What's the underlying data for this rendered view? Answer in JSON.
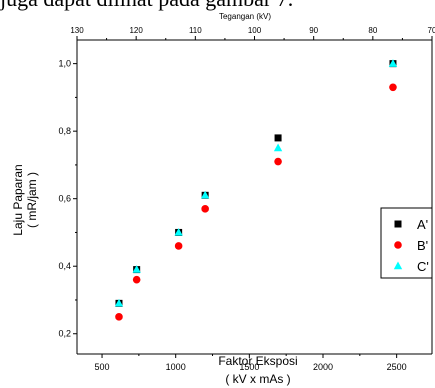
{
  "caption_text": "juga dapat dilihat pada gambar 7.",
  "chart_data": {
    "type": "scatter",
    "title": "",
    "xlabel": "Faktor Eksposi",
    "xlabel_units": "( kV x mAs )",
    "ylabel": "Laju Paparan",
    "ylabel_units": "( mR/jam )",
    "top_axis_label": "Tegangan (kV)",
    "xlim": [
      330,
      2740
    ],
    "ylim": [
      0.14,
      1.07
    ],
    "x_ticks": [
      500,
      1000,
      1500,
      2000,
      2500
    ],
    "y_ticks": [
      0.2,
      0.4,
      0.6,
      0.8,
      1.0
    ],
    "y_tick_labels": [
      "0,2",
      "0,4",
      "0,6",
      "0,8",
      "1,0"
    ],
    "top_ticks": [
      130,
      120,
      110,
      100,
      90,
      80,
      70
    ],
    "top_range": [
      130,
      70
    ],
    "legend_position": "right",
    "series": [
      {
        "name": "A'",
        "marker": "square",
        "color": "#000000",
        "x": [
          615,
          735,
          1020,
          1200,
          1695,
          2475
        ],
        "y": [
          0.29,
          0.39,
          0.5,
          0.61,
          0.78,
          1.0
        ]
      },
      {
        "name": "B'",
        "marker": "circle",
        "color": "#ff0000",
        "x": [
          615,
          735,
          1020,
          1200,
          1695,
          2475
        ],
        "y": [
          0.25,
          0.36,
          0.46,
          0.57,
          0.71,
          0.93
        ]
      },
      {
        "name": "C'",
        "marker": "triangle",
        "color": "#00ffff",
        "x": [
          615,
          735,
          1020,
          1200,
          1695,
          2475
        ],
        "y": [
          0.29,
          0.39,
          0.5,
          0.61,
          0.75,
          1.0
        ]
      }
    ]
  }
}
